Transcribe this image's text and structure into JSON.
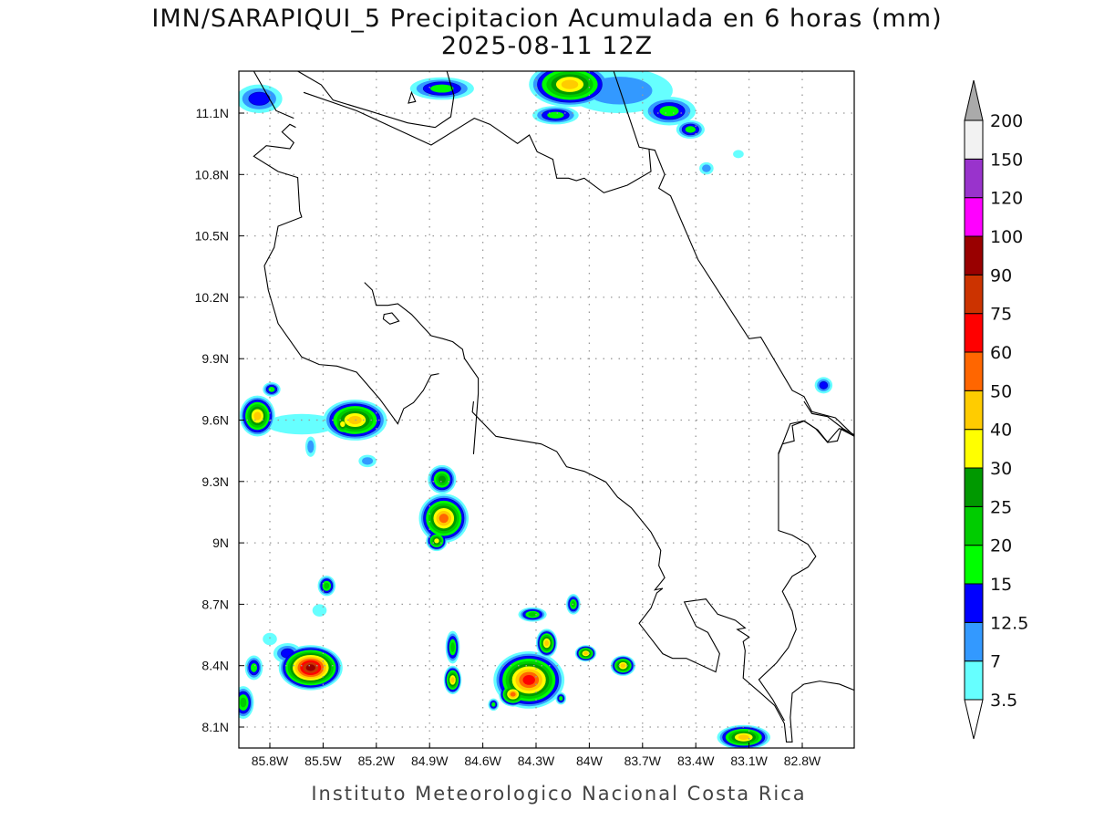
{
  "title": "IMN/SARAPIQUI_5 Precipitacion Acumulada en 6 horas (mm)",
  "subtitle": "2025-08-11 12Z",
  "footer": "Instituto Meteorologico Nacional Costa Rica",
  "chart_data": {
    "type": "heatmap",
    "variable": "6-hour accumulated precipitation (mm)",
    "lon_range": [
      -86.0,
      -82.5
    ],
    "lat_range": [
      8.0,
      11.3
    ],
    "grid": true,
    "lat_ticks": [
      {
        "value": 11.1,
        "label": "11.1N"
      },
      {
        "value": 10.8,
        "label": "10.8N"
      },
      {
        "value": 10.5,
        "label": "10.5N"
      },
      {
        "value": 10.2,
        "label": "10.2N"
      },
      {
        "value": 9.9,
        "label": "9.9N"
      },
      {
        "value": 9.6,
        "label": "9.6N"
      },
      {
        "value": 9.3,
        "label": "9.3N"
      },
      {
        "value": 9.0,
        "label": "9N"
      },
      {
        "value": 8.7,
        "label": "8.7N"
      },
      {
        "value": 8.4,
        "label": "8.4N"
      },
      {
        "value": 8.1,
        "label": "8.1N"
      }
    ],
    "lon_ticks": [
      {
        "value": -85.8,
        "label": "85.8W"
      },
      {
        "value": -85.5,
        "label": "85.5W"
      },
      {
        "value": -85.2,
        "label": "85.2W"
      },
      {
        "value": -84.9,
        "label": "84.9W"
      },
      {
        "value": -84.6,
        "label": "84.6W"
      },
      {
        "value": -84.3,
        "label": "84.3W"
      },
      {
        "value": -84.0,
        "label": "84W"
      },
      {
        "value": -83.7,
        "label": "83.7W"
      },
      {
        "value": -83.4,
        "label": "83.4W"
      },
      {
        "value": -83.1,
        "label": "83.1W"
      },
      {
        "value": -82.8,
        "label": "82.8W"
      }
    ],
    "colorbar": {
      "levels": [
        "3.5",
        "7",
        "12.5",
        "15",
        "20",
        "25",
        "30",
        "40",
        "50",
        "60",
        "75",
        "90",
        "100",
        "120",
        "150",
        "200"
      ],
      "colors": [
        "#66ffff",
        "#3399ff",
        "#0000ff",
        "#00ff00",
        "#00cc00",
        "#009900",
        "#ffff00",
        "#ffcc00",
        "#ff6600",
        "#ff0000",
        "#cc3300",
        "#990000",
        "#ff00ff",
        "#9933cc",
        "#f2f2f2"
      ],
      "over_color": "#aaaaaa",
      "under_color": "#ffffff"
    },
    "cells": [
      {
        "lon": -83.83,
        "lat": 11.21,
        "rlon": 0.3,
        "rlat": 0.11,
        "peak": 1
      },
      {
        "lon": -84.11,
        "lat": 11.24,
        "rlon": 0.23,
        "rlat": 0.11,
        "peak": 7
      },
      {
        "lon": -84.19,
        "lat": 11.09,
        "rlon": 0.13,
        "rlat": 0.045,
        "peak": 3
      },
      {
        "lon": -84.83,
        "lat": 11.22,
        "rlon": 0.18,
        "rlat": 0.055,
        "peak": 3
      },
      {
        "lon": -85.86,
        "lat": 11.17,
        "rlon": 0.13,
        "rlat": 0.07,
        "peak": 2
      },
      {
        "lon": -83.55,
        "lat": 11.11,
        "rlon": 0.15,
        "rlat": 0.07,
        "peak": 3
      },
      {
        "lon": -83.43,
        "lat": 11.02,
        "rlon": 0.08,
        "rlat": 0.045,
        "peak": 3
      },
      {
        "lon": -83.34,
        "lat": 10.83,
        "rlon": 0.04,
        "rlat": 0.03,
        "peak": 1
      },
      {
        "lon": -83.16,
        "lat": 10.9,
        "rlon": 0.03,
        "rlat": 0.02,
        "peak": 0
      },
      {
        "lon": -85.62,
        "lat": 9.58,
        "rlon": 0.2,
        "rlat": 0.05,
        "peak": 0
      },
      {
        "lon": -85.87,
        "lat": 9.62,
        "rlon": 0.1,
        "rlat": 0.1,
        "peak": 7
      },
      {
        "lon": -85.32,
        "lat": 9.6,
        "rlon": 0.18,
        "rlat": 0.1,
        "peak": 7
      },
      {
        "lon": -85.39,
        "lat": 9.58,
        "rlon": 0.06,
        "rlat": 0.06,
        "peak": 6
      },
      {
        "lon": -85.79,
        "lat": 9.75,
        "rlon": 0.05,
        "rlat": 0.035,
        "peak": 3
      },
      {
        "lon": -85.57,
        "lat": 9.47,
        "rlon": 0.03,
        "rlat": 0.05,
        "peak": 1
      },
      {
        "lon": -85.25,
        "lat": 9.4,
        "rlon": 0.05,
        "rlat": 0.03,
        "peak": 1
      },
      {
        "lon": -82.68,
        "lat": 9.77,
        "rlon": 0.05,
        "rlat": 0.04,
        "peak": 2
      },
      {
        "lon": -84.83,
        "lat": 9.31,
        "rlon": 0.08,
        "rlat": 0.07,
        "peak": 5
      },
      {
        "lon": -84.82,
        "lat": 9.12,
        "rlon": 0.14,
        "rlat": 0.12,
        "peak": 8
      },
      {
        "lon": -84.86,
        "lat": 9.01,
        "rlon": 0.06,
        "rlat": 0.05,
        "peak": 6
      },
      {
        "lon": -85.48,
        "lat": 8.79,
        "rlon": 0.05,
        "rlat": 0.05,
        "peak": 4
      },
      {
        "lon": -85.52,
        "lat": 8.67,
        "rlon": 0.04,
        "rlat": 0.03,
        "peak": 0
      },
      {
        "lon": -85.8,
        "lat": 8.53,
        "rlon": 0.04,
        "rlat": 0.03,
        "peak": 0
      },
      {
        "lon": -85.7,
        "lat": 8.46,
        "rlon": 0.08,
        "rlat": 0.05,
        "peak": 2
      },
      {
        "lon": -85.57,
        "lat": 8.39,
        "rlon": 0.18,
        "rlat": 0.11,
        "peak": 11
      },
      {
        "lon": -85.89,
        "lat": 8.39,
        "rlon": 0.05,
        "rlat": 0.06,
        "peak": 3
      },
      {
        "lon": -85.95,
        "lat": 8.22,
        "rlon": 0.06,
        "rlat": 0.08,
        "peak": 4
      },
      {
        "lon": -84.77,
        "lat": 8.49,
        "rlon": 0.04,
        "rlat": 0.08,
        "peak": 4
      },
      {
        "lon": -84.77,
        "lat": 8.33,
        "rlon": 0.05,
        "rlat": 0.07,
        "peak": 7
      },
      {
        "lon": -84.32,
        "lat": 8.65,
        "rlon": 0.08,
        "rlat": 0.035,
        "peak": 4
      },
      {
        "lon": -84.09,
        "lat": 8.7,
        "rlon": 0.04,
        "rlat": 0.05,
        "peak": 4
      },
      {
        "lon": -84.24,
        "lat": 8.51,
        "rlon": 0.06,
        "rlat": 0.07,
        "peak": 7
      },
      {
        "lon": -84.34,
        "lat": 8.33,
        "rlon": 0.2,
        "rlat": 0.14,
        "peak": 9
      },
      {
        "lon": -84.43,
        "lat": 8.26,
        "rlon": 0.08,
        "rlat": 0.06,
        "peak": 8
      },
      {
        "lon": -84.16,
        "lat": 8.24,
        "rlon": 0.03,
        "rlat": 0.03,
        "peak": 3
      },
      {
        "lon": -84.02,
        "lat": 8.46,
        "rlon": 0.06,
        "rlat": 0.04,
        "peak": 7
      },
      {
        "lon": -83.81,
        "lat": 8.4,
        "rlon": 0.07,
        "rlat": 0.05,
        "peak": 7
      },
      {
        "lon": -84.54,
        "lat": 8.21,
        "rlon": 0.03,
        "rlat": 0.03,
        "peak": 3
      },
      {
        "lon": -83.13,
        "lat": 8.05,
        "rlon": 0.15,
        "rlat": 0.06,
        "peak": 7
      }
    ]
  }
}
